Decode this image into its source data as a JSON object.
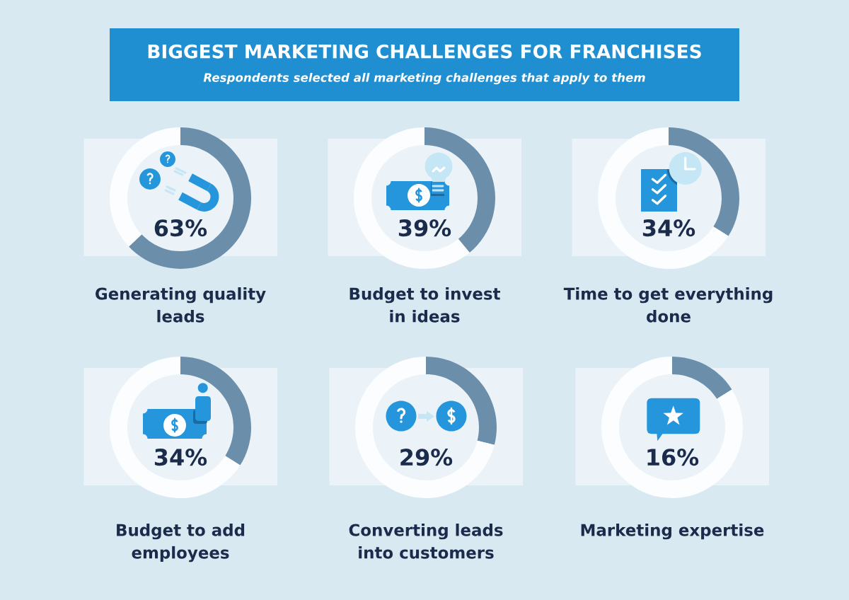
{
  "chart_data": [
    {
      "type": "other",
      "title": "BIGGEST MARKETING CHALLENGES FOR FRANCHISES",
      "subtitle": "Respondents selected all marketing challenges that apply to them"
    },
    {
      "type": "donut",
      "title": "Generating quality\nleads",
      "categories": [
        null,
        null
      ],
      "values": [
        63,
        37
      ],
      "colors": [
        "#6b8eab",
        "#fbfdfe"
      ],
      "annotations": [
        "63%"
      ]
    },
    {
      "type": "donut",
      "title": "Budget to invest\nin ideas",
      "categories": [
        null,
        null
      ],
      "values": [
        39,
        61
      ],
      "colors": [
        "#6b8eab",
        "#fbfdfe"
      ],
      "annotations": [
        "39%"
      ]
    },
    {
      "type": "donut",
      "title": "Time to get everything\ndone",
      "categories": [
        null,
        null
      ],
      "values": [
        34,
        66
      ],
      "colors": [
        "#6b8eab",
        "#fbfdfe"
      ],
      "annotations": [
        "34%"
      ]
    },
    {
      "type": "donut",
      "title": "Budget to add\nemployees",
      "categories": [
        null,
        null
      ],
      "values": [
        34,
        66
      ],
      "colors": [
        "#6b8eab",
        "#fbfdfe"
      ],
      "annotations": [
        "34%"
      ]
    },
    {
      "type": "donut",
      "title": "Converting leads\ninto customers",
      "categories": [
        null,
        null
      ],
      "values": [
        29,
        71
      ],
      "colors": [
        "#6b8eab",
        "#fbfdfe"
      ],
      "annotations": [
        "29%"
      ]
    },
    {
      "type": "donut",
      "title": "Marketing expertise",
      "categories": [
        null,
        null
      ],
      "values": [
        16,
        84
      ],
      "colors": [
        "#6b8eab",
        "#fbfdfe"
      ],
      "annotations": [
        "16%"
      ]
    }
  ]
}
